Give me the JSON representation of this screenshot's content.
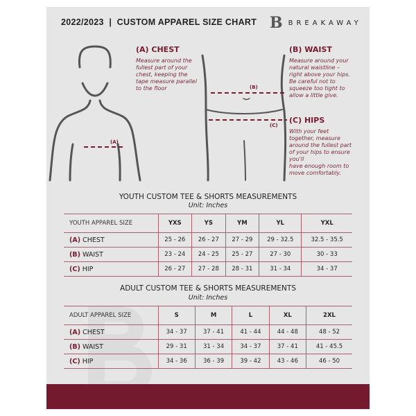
{
  "header": {
    "title": "2022/2023  |  CUSTOM APPAREL SIZE CHART",
    "brand": "BREAKAWAY",
    "logo_letter": "B"
  },
  "measures": {
    "chest": {
      "title": "(A) CHEST",
      "text": [
        "Measure around the",
        "fullest part of your",
        "chest, keeping the",
        "tape measure parallel",
        "to the floor"
      ],
      "marker": "(A)"
    },
    "waist": {
      "title": "(B) WAIST",
      "text": [
        "Measure around your",
        "natural waistline –",
        "right above your hips.",
        "Be careful not to",
        "squeeze too tight to",
        "allow a little give."
      ],
      "marker": "(B)"
    },
    "hips": {
      "title": "(C) HIPS",
      "text": [
        "With your feet",
        "together, measure",
        "around the fullest part",
        "of your hips to ensure",
        "you'll",
        "have enough room to",
        "move comfortably."
      ],
      "marker": "(C)"
    }
  },
  "youth": {
    "title": "YOUTH CUSTOM TEE & SHORTS MEASUREMENTS",
    "unit": "Unit: Inches",
    "header": [
      "YOUTH APPAREL SIZE",
      "YXS",
      "YS",
      "YM",
      "YL",
      "YXL"
    ],
    "rows": [
      {
        "letter": "(A)",
        "label": "CHEST",
        "values": [
          "25 - 26",
          "26 - 27",
          "27 - 29",
          "29 - 32.5",
          "32.5 - 35.5"
        ]
      },
      {
        "letter": "(B)",
        "label": "WAIST",
        "values": [
          "23 - 24",
          "24 - 25",
          "25 - 27",
          "27 - 30",
          "30 - 33"
        ]
      },
      {
        "letter": "(C)",
        "label": "HIP",
        "values": [
          "26 - 27",
          "27 - 28",
          "28 - 31",
          "31 - 34",
          "34 - 37"
        ]
      }
    ]
  },
  "adult": {
    "title": "ADULT CUSTOM TEE & SHORTS MEASUREMENTS",
    "unit": "Unit: Inches",
    "header": [
      "ADULT APPAREL SIZE",
      "S",
      "M",
      "L",
      "XL",
      "2XL"
    ],
    "rows": [
      {
        "letter": "(A)",
        "label": "CHEST",
        "values": [
          "34 - 37",
          "37 - 41",
          "41 - 44",
          "44 - 48",
          "48 - 52"
        ]
      },
      {
        "letter": "(B)",
        "label": "WAIST",
        "values": [
          "29 - 31",
          "31 - 34",
          "34 - 37",
          "37 - 41",
          "41 - 45.5"
        ]
      },
      {
        "letter": "(C)",
        "label": "HIP",
        "values": [
          "34 - 36",
          "36 - 39",
          "39 - 42",
          "43 - 46",
          "46 - 50"
        ]
      }
    ]
  },
  "colors": {
    "accent": "#741a2e",
    "background": "#e6e6e7"
  }
}
